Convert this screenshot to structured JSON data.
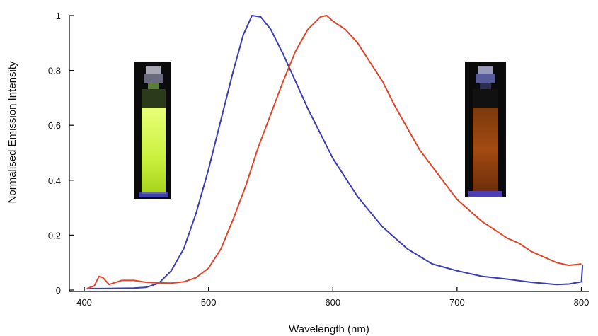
{
  "chart_data": {
    "type": "line",
    "title": "",
    "xlabel": "Wavelength (nm)",
    "ylabel": "Normalised Emission Intensity",
    "xlim": [
      400,
      800
    ],
    "ylim": [
      0,
      1
    ],
    "x_ticks": [
      400,
      500,
      600,
      700,
      800
    ],
    "y_ticks": [
      0,
      0.2,
      0.4,
      0.6,
      0.8,
      1
    ],
    "x_tick_labels": [
      "400",
      "500",
      "600",
      "700",
      "800"
    ],
    "y_tick_labels": [
      "0",
      "0.2",
      "0.4",
      "0.6",
      "0.8",
      "1"
    ],
    "grid": false,
    "legend": "none",
    "series": [
      {
        "color": "#3b3db5",
        "points": [
          [
            402,
            0.005
          ],
          [
            420,
            0.006
          ],
          [
            440,
            0.007
          ],
          [
            450,
            0.01
          ],
          [
            460,
            0.025
          ],
          [
            470,
            0.07
          ],
          [
            480,
            0.15
          ],
          [
            490,
            0.28
          ],
          [
            500,
            0.44
          ],
          [
            510,
            0.62
          ],
          [
            520,
            0.8
          ],
          [
            528,
            0.93
          ],
          [
            535,
            1.0
          ],
          [
            542,
            0.995
          ],
          [
            550,
            0.95
          ],
          [
            560,
            0.86
          ],
          [
            570,
            0.76
          ],
          [
            580,
            0.66
          ],
          [
            590,
            0.57
          ],
          [
            600,
            0.48
          ],
          [
            620,
            0.34
          ],
          [
            640,
            0.23
          ],
          [
            660,
            0.15
          ],
          [
            680,
            0.095
          ],
          [
            700,
            0.07
          ],
          [
            720,
            0.05
          ],
          [
            740,
            0.04
          ],
          [
            760,
            0.028
          ],
          [
            780,
            0.02
          ],
          [
            790,
            0.022
          ],
          [
            800,
            0.03
          ],
          [
            801,
            0.09
          ]
        ]
      },
      {
        "color": "#e2442a",
        "points": [
          [
            402,
            0.005
          ],
          [
            408,
            0.015
          ],
          [
            412,
            0.05
          ],
          [
            415,
            0.045
          ],
          [
            420,
            0.02
          ],
          [
            430,
            0.035
          ],
          [
            440,
            0.035
          ],
          [
            450,
            0.028
          ],
          [
            460,
            0.026
          ],
          [
            470,
            0.025
          ],
          [
            480,
            0.03
          ],
          [
            490,
            0.045
          ],
          [
            500,
            0.08
          ],
          [
            510,
            0.15
          ],
          [
            520,
            0.26
          ],
          [
            530,
            0.38
          ],
          [
            540,
            0.52
          ],
          [
            550,
            0.64
          ],
          [
            560,
            0.76
          ],
          [
            570,
            0.87
          ],
          [
            580,
            0.95
          ],
          [
            590,
            0.995
          ],
          [
            595,
            1.0
          ],
          [
            600,
            0.98
          ],
          [
            610,
            0.95
          ],
          [
            620,
            0.9
          ],
          [
            630,
            0.83
          ],
          [
            640,
            0.76
          ],
          [
            650,
            0.67
          ],
          [
            660,
            0.59
          ],
          [
            670,
            0.51
          ],
          [
            680,
            0.45
          ],
          [
            690,
            0.39
          ],
          [
            700,
            0.33
          ],
          [
            710,
            0.29
          ],
          [
            720,
            0.25
          ],
          [
            730,
            0.22
          ],
          [
            740,
            0.19
          ],
          [
            750,
            0.17
          ],
          [
            760,
            0.14
          ],
          [
            770,
            0.12
          ],
          [
            780,
            0.1
          ],
          [
            790,
            0.09
          ],
          [
            800,
            0.095
          ]
        ]
      }
    ]
  }
}
